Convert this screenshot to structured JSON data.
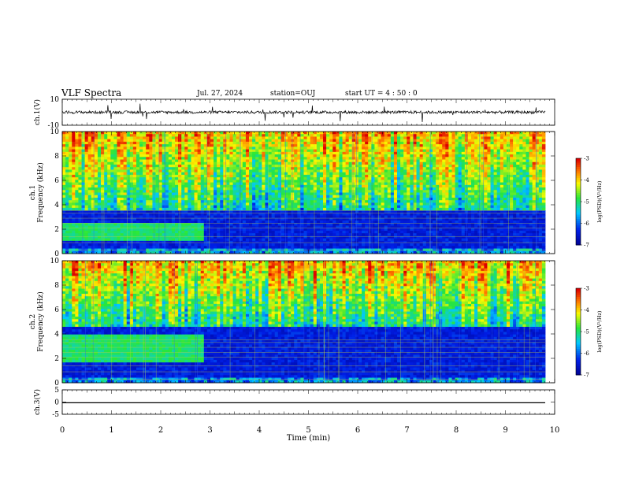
{
  "header": {
    "title": "VLF Spectra",
    "date": "Jul. 27, 2024",
    "station": "station=OUJ",
    "start": "start  UT =  4 : 50 : 0"
  },
  "chart_data": [
    {
      "type": "line",
      "panel": "ch1-waveform",
      "ylabel": "ch.1(V)",
      "ylim": [
        -10,
        10
      ],
      "yticks": [
        "10",
        "-10"
      ],
      "baseline": 0
    },
    {
      "type": "heatmap",
      "panel": "ch1-spectrogram",
      "ylabel": "ch.1\nFrequency (kHz)",
      "xlim": [
        0,
        10
      ],
      "ylim": [
        0,
        10
      ],
      "yticks": [
        "0",
        "2",
        "4",
        "6",
        "8",
        "10"
      ],
      "colorbar": {
        "label": "log(PSD)(V²/Hz)",
        "range": [
          -7,
          -3
        ],
        "ticks": [
          "-3",
          "-4",
          "-5",
          "-6",
          "-7"
        ]
      },
      "noise_band_khz": [
        1.0,
        2.6
      ],
      "noise_band_end_min": 2.85,
      "hiss_floor_khz": 3.5
    },
    {
      "type": "heatmap",
      "panel": "ch2-spectrogram",
      "ylabel": "ch.2\nFrequency (kHz)",
      "xlim": [
        0,
        10
      ],
      "ylim": [
        0,
        10
      ],
      "yticks": [
        "0",
        "2",
        "4",
        "6",
        "8",
        "10"
      ],
      "colorbar": {
        "label": "log(PSD)(V²/Hz)",
        "range": [
          -7,
          -3
        ],
        "ticks": [
          "-3",
          "-4",
          "-5",
          "-6",
          "-7"
        ]
      },
      "noise_band_khz": [
        1.6,
        4.0
      ],
      "noise_band_end_min": 2.85,
      "hiss_floor_khz": 4.5
    },
    {
      "type": "line",
      "panel": "ch3-waveform",
      "ylabel": "ch.3(V)",
      "ylim": [
        -5,
        5
      ],
      "yticks": [
        "5",
        "0",
        "-5"
      ],
      "baseline": -0.3
    }
  ],
  "xaxis": {
    "label": "Time (min)",
    "range": [
      0,
      10
    ],
    "ticks": [
      "0",
      "1",
      "2",
      "3",
      "4",
      "5",
      "6",
      "7",
      "8",
      "9",
      "10"
    ]
  },
  "colors": {
    "axis": "#000000",
    "background": "#ffffff"
  }
}
